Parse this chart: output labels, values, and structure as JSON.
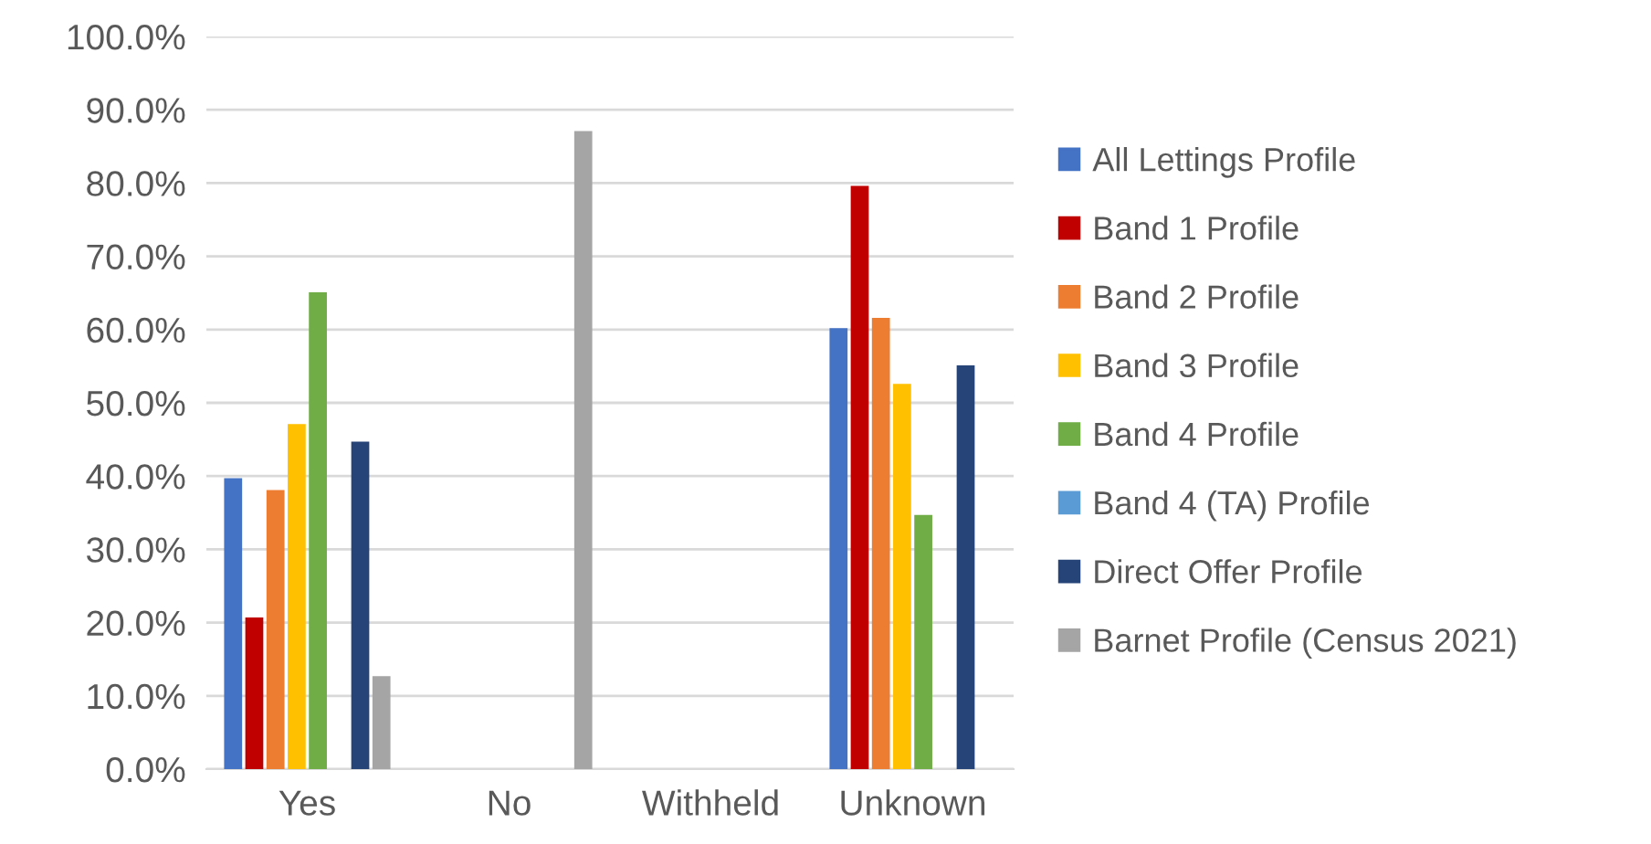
{
  "chart_data": {
    "type": "bar",
    "categories": [
      "Yes",
      "No",
      "Withheld",
      "Unknown"
    ],
    "series": [
      {
        "name": "All Lettings Profile",
        "color": "#4472c4",
        "values": [
          39.7,
          0,
          0,
          60.2
        ]
      },
      {
        "name": "Band 1 Profile",
        "color": "#c00000",
        "values": [
          20.7,
          0,
          0,
          79.6
        ]
      },
      {
        "name": "Band 2 Profile",
        "color": "#ed7d31",
        "values": [
          38.1,
          0,
          0,
          61.6
        ]
      },
      {
        "name": "Band 3 Profile",
        "color": "#ffc000",
        "values": [
          47.1,
          0,
          0,
          52.6
        ]
      },
      {
        "name": "Band 4 Profile",
        "color": "#70ad47",
        "values": [
          65.1,
          0,
          0,
          34.7
        ]
      },
      {
        "name": "Band 4 (TA) Profile",
        "color": "#5b9bd5",
        "values": [
          0,
          0,
          0,
          0
        ]
      },
      {
        "name": "Direct Offer Profile",
        "color": "#264478",
        "values": [
          44.7,
          0,
          0,
          55.1
        ]
      },
      {
        "name": "Barnet Profile (Census 2021)",
        "color": "#a5a5a5",
        "values": [
          12.7,
          87.1,
          0,
          0
        ]
      }
    ],
    "ylim": [
      0,
      100
    ],
    "yticks": [
      {
        "value": 0,
        "label": "0.0%"
      },
      {
        "value": 10,
        "label": "10.0%"
      },
      {
        "value": 20,
        "label": "20.0%"
      },
      {
        "value": 30,
        "label": "30.0%"
      },
      {
        "value": 40,
        "label": "40.0%"
      },
      {
        "value": 50,
        "label": "50.0%"
      },
      {
        "value": 60,
        "label": "60.0%"
      },
      {
        "value": 70,
        "label": "70.0%"
      },
      {
        "value": 80,
        "label": "80.0%"
      },
      {
        "value": 90,
        "label": "90.0%"
      },
      {
        "value": 100,
        "label": "100.0%"
      }
    ],
    "grid": "y",
    "legend": "right"
  }
}
